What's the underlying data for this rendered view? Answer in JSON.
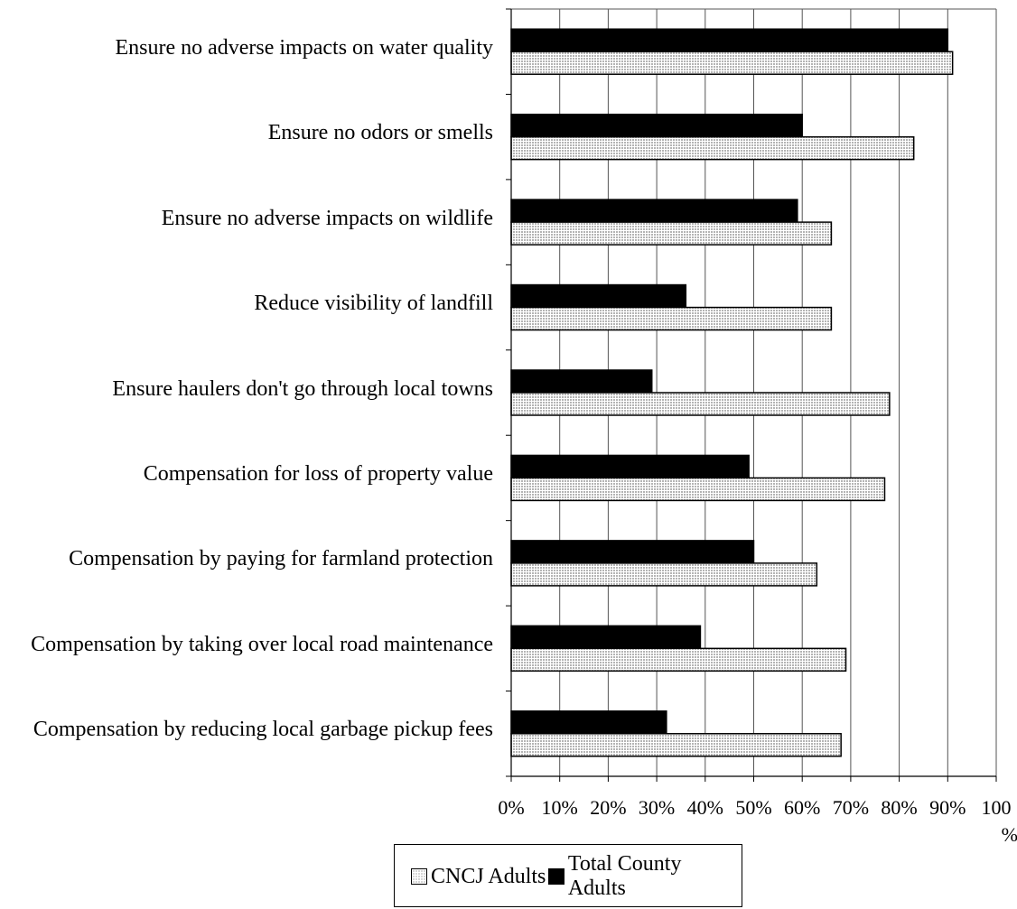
{
  "chart_data": {
    "type": "bar",
    "orientation": "horizontal",
    "categories": [
      "Ensure no adverse impacts on water quality",
      "Ensure no odors or smells",
      "Ensure no adverse impacts on wildlife",
      "Reduce visibility of landfill",
      "Ensure haulers don't go through local towns",
      "Compensation for loss of property value",
      "Compensation by paying for farmland protection",
      "Compensation by taking over local road maintenance",
      "Compensation by reducing local garbage pickup fees"
    ],
    "series": [
      {
        "name": "Total County Adults",
        "color": "#000000",
        "pattern": "solid",
        "values": [
          90,
          60,
          59,
          36,
          29,
          49,
          50,
          39,
          32
        ]
      },
      {
        "name": "CNCJ Adults",
        "color": "#d6d6d6",
        "pattern": "dotted-grid",
        "values": [
          91,
          83,
          66,
          66,
          78,
          77,
          63,
          69,
          68
        ]
      }
    ],
    "xlim": [
      0,
      100
    ],
    "xticks": [
      "0%",
      "10%",
      "20%",
      "30%",
      "40%",
      "50%",
      "60%",
      "70%",
      "80%",
      "90%",
      "100 %"
    ],
    "grid": "vertical",
    "legend": {
      "position": "bottom-center",
      "entries": [
        "CNCJ Adults",
        "Total County Adults"
      ]
    },
    "title": "",
    "xlabel": "",
    "ylabel": ""
  }
}
